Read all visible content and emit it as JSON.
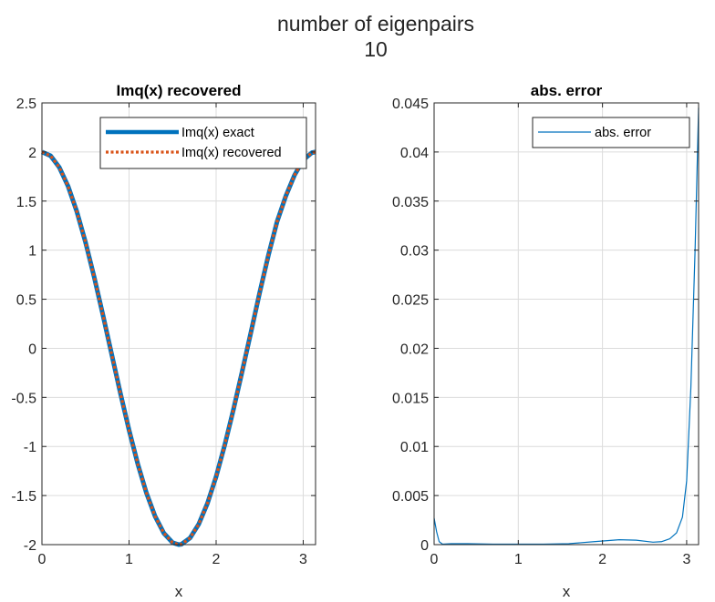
{
  "figure": {
    "suptitle_line1": "number of eigenpairs",
    "suptitle_line2": "10"
  },
  "chart_data": [
    {
      "type": "line",
      "title": "Imq(x) recovered",
      "xlabel": "x",
      "ylabel": "",
      "xlim": [
        0,
        3.14159
      ],
      "ylim": [
        -2,
        2.5
      ],
      "xticks": [
        0,
        1,
        2,
        3
      ],
      "xtick_labels": [
        "0",
        "1",
        "2",
        "3"
      ],
      "yticks": [
        -2,
        -1.5,
        -1,
        -0.5,
        0,
        0.5,
        1,
        1.5,
        2,
        2.5
      ],
      "ytick_labels": [
        "-2",
        "-1.5",
        "-1",
        "-0.5",
        "0",
        "0.5",
        "1",
        "1.5",
        "2",
        "2.5"
      ],
      "grid": true,
      "legend_position": "top-right",
      "series": [
        {
          "name": "Imq(x) exact",
          "color": "#0072BD",
          "style": "solid",
          "x": [
            0,
            0.1,
            0.2,
            0.3,
            0.4,
            0.5,
            0.6,
            0.7,
            0.8,
            0.9,
            1.0,
            1.1,
            1.2,
            1.3,
            1.4,
            1.5,
            1.5708,
            1.6,
            1.7,
            1.8,
            1.9,
            2.0,
            2.1,
            2.2,
            2.3,
            2.4,
            2.5,
            2.6,
            2.7,
            2.8,
            2.9,
            3.0,
            3.1,
            3.14159
          ],
          "y": [
            2.0,
            1.961,
            1.842,
            1.651,
            1.394,
            1.081,
            0.725,
            0.34,
            -0.058,
            -0.455,
            -0.832,
            -1.177,
            -1.475,
            -1.713,
            -1.884,
            -1.98,
            -2.0,
            -1.997,
            -1.933,
            -1.792,
            -1.58,
            -1.307,
            -0.981,
            -0.619,
            -0.232,
            0.165,
            0.567,
            0.947,
            1.291,
            1.551,
            1.764,
            1.919,
            1.993,
            2.0
          ]
        },
        {
          "name": "Imq(x) recovered",
          "color": "#D95319",
          "style": "dotted",
          "x": [
            0,
            0.1,
            0.2,
            0.3,
            0.4,
            0.5,
            0.6,
            0.7,
            0.8,
            0.9,
            1.0,
            1.1,
            1.2,
            1.3,
            1.4,
            1.5,
            1.5708,
            1.6,
            1.7,
            1.8,
            1.9,
            2.0,
            2.1,
            2.2,
            2.3,
            2.4,
            2.5,
            2.6,
            2.7,
            2.8,
            2.9,
            3.0,
            3.1,
            3.14159
          ],
          "y": [
            2.0,
            1.961,
            1.842,
            1.651,
            1.394,
            1.081,
            0.725,
            0.34,
            -0.058,
            -0.455,
            -0.832,
            -1.177,
            -1.475,
            -1.713,
            -1.884,
            -1.98,
            -2.0,
            -1.997,
            -1.933,
            -1.792,
            -1.58,
            -1.307,
            -0.981,
            -0.619,
            -0.232,
            0.165,
            0.567,
            0.947,
            1.291,
            1.551,
            1.764,
            1.919,
            1.993,
            2.0
          ]
        }
      ]
    },
    {
      "type": "line",
      "title": "abs. error",
      "xlabel": "x",
      "ylabel": "",
      "xlim": [
        0,
        3.14159
      ],
      "ylim": [
        0,
        0.045
      ],
      "xticks": [
        0,
        1,
        2,
        3
      ],
      "xtick_labels": [
        "0",
        "1",
        "2",
        "3"
      ],
      "yticks": [
        0,
        0.005,
        0.01,
        0.015,
        0.02,
        0.025,
        0.03,
        0.035,
        0.04,
        0.045
      ],
      "ytick_labels": [
        "0",
        "0.005",
        "0.01",
        "0.015",
        "0.02",
        "0.025",
        "0.03",
        "0.035",
        "0.04",
        "0.045"
      ],
      "grid": true,
      "legend_position": "top-right",
      "series": [
        {
          "name": "abs. error",
          "color": "#0072BD",
          "style": "solid",
          "x": [
            0,
            0.03,
            0.06,
            0.1,
            0.2,
            0.4,
            0.7,
            1.0,
            1.3,
            1.6,
            1.9,
            2.2,
            2.4,
            2.6,
            2.7,
            2.8,
            2.88,
            2.95,
            3.0,
            3.05,
            3.1,
            3.14159
          ],
          "y": [
            0.0027,
            0.0013,
            0.0003,
            5e-05,
            0.0001,
            0.0001,
            5e-05,
            5e-05,
            5e-05,
            0.0001,
            0.0003,
            0.0005,
            0.00045,
            0.00025,
            0.0003,
            0.0006,
            0.0012,
            0.0028,
            0.0065,
            0.016,
            0.03,
            0.0445
          ]
        }
      ]
    }
  ]
}
